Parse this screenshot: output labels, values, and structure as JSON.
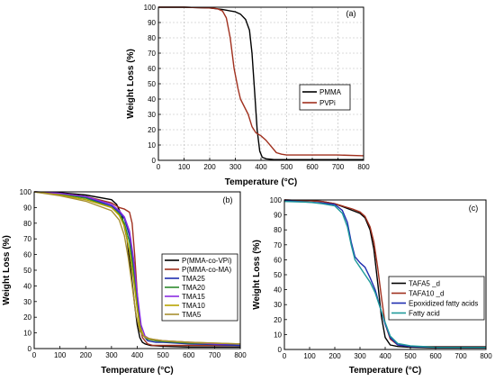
{
  "chart_data": [
    {
      "id": "a",
      "type": "line",
      "panel_label": "(a)",
      "xlabel": "Temperature (°C)",
      "ylabel": "Weight Loss (%)",
      "xlim": [
        0,
        800
      ],
      "ylim": [
        0,
        100
      ],
      "xticks": [
        0,
        100,
        200,
        300,
        400,
        500,
        600,
        700,
        800
      ],
      "yticks": [
        0,
        10,
        20,
        30,
        40,
        50,
        60,
        70,
        80,
        90,
        100
      ],
      "grid": true,
      "legend_position": "center-right",
      "series": [
        {
          "name": "PMMA",
          "color": "#000000",
          "x": [
            0,
            100,
            200,
            250,
            300,
            320,
            340,
            355,
            365,
            375,
            385,
            395,
            405,
            420,
            450,
            500,
            600,
            700,
            800
          ],
          "y": [
            100,
            100,
            99.5,
            98.5,
            97,
            95.5,
            92,
            85,
            70,
            45,
            20,
            6,
            2,
            1,
            0.5,
            0.5,
            0.5,
            0.5,
            0.5
          ]
        },
        {
          "name": "PVPi",
          "color": "#a0301e",
          "x": [
            0,
            100,
            200,
            230,
            250,
            265,
            280,
            295,
            310,
            320,
            335,
            350,
            365,
            380,
            400,
            420,
            440,
            460,
            480,
            500,
            550,
            600,
            700,
            800
          ],
          "y": [
            100,
            100,
            99.5,
            99,
            97.5,
            93,
            80,
            60,
            47,
            40,
            35,
            30,
            22,
            18,
            16,
            13,
            9,
            5,
            4,
            3.5,
            3.5,
            3.5,
            3.5,
            3
          ]
        }
      ]
    },
    {
      "id": "b",
      "type": "line",
      "panel_label": "(b)",
      "xlabel": "Temperature (°C)",
      "ylabel": "Weight Loss (%)",
      "xlim": [
        0,
        800
      ],
      "ylim": [
        0,
        100
      ],
      "xticks": [
        0,
        100,
        200,
        300,
        400,
        500,
        600,
        700,
        800
      ],
      "yticks": [
        0,
        10,
        20,
        30,
        40,
        50,
        60,
        70,
        80,
        90,
        100
      ],
      "grid": false,
      "legend_position": "right",
      "series": [
        {
          "name": "P(MMA-co-VPi)",
          "color": "#000000",
          "x": [
            0,
            100,
            200,
            300,
            320,
            340,
            360,
            375,
            390,
            400,
            410,
            420,
            430,
            450,
            500,
            600,
            700,
            800
          ],
          "y": [
            100,
            99.5,
            98,
            95,
            92,
            85,
            70,
            50,
            28,
            15,
            7,
            4,
            3,
            2,
            1.5,
            1,
            1,
            1
          ]
        },
        {
          "name": "P(MMA-co-MA)",
          "color": "#a0301e",
          "x": [
            0,
            100,
            200,
            300,
            330,
            350,
            370,
            380,
            390,
            400,
            410,
            420,
            440,
            460,
            500,
            600,
            700,
            800
          ],
          "y": [
            100,
            99,
            97,
            93,
            90,
            89,
            87,
            80,
            60,
            35,
            15,
            7,
            3,
            2,
            2,
            2,
            2,
            2
          ]
        },
        {
          "name": "TMA25",
          "color": "#1f2eb0",
          "x": [
            0,
            100,
            200,
            300,
            330,
            350,
            370,
            385,
            400,
            410,
            420,
            440,
            470,
            500,
            600,
            700,
            800
          ],
          "y": [
            100,
            99,
            96.5,
            91,
            87,
            83,
            72,
            55,
            30,
            17,
            9,
            5,
            4,
            4,
            3,
            2.5,
            2
          ]
        },
        {
          "name": "TMA20",
          "color": "#2e8b2e",
          "x": [
            0,
            100,
            200,
            300,
            330,
            350,
            370,
            385,
            400,
            410,
            420,
            440,
            470,
            500,
            600,
            700,
            800
          ],
          "y": [
            100,
            98.5,
            96,
            90,
            86,
            80,
            68,
            50,
            27,
            15,
            9,
            6,
            5,
            4.5,
            3.5,
            3,
            3
          ]
        },
        {
          "name": "TMA15",
          "color": "#8a2be2",
          "x": [
            0,
            100,
            200,
            300,
            330,
            350,
            370,
            385,
            400,
            415,
            430,
            450,
            500,
            600,
            700,
            800
          ],
          "y": [
            100,
            99,
            97,
            92,
            88,
            84,
            75,
            58,
            35,
            15,
            8,
            6,
            5,
            4,
            3,
            3
          ]
        },
        {
          "name": "TMA10",
          "color": "#b8a400",
          "x": [
            0,
            100,
            200,
            300,
            330,
            350,
            370,
            385,
            400,
            410,
            425,
            450,
            500,
            600,
            700,
            800
          ],
          "y": [
            100,
            98,
            95,
            90,
            85,
            78,
            62,
            45,
            25,
            14,
            8,
            6,
            5,
            4,
            3.5,
            3
          ]
        },
        {
          "name": "TMA5",
          "color": "#a89030",
          "x": [
            0,
            100,
            200,
            300,
            330,
            350,
            365,
            380,
            395,
            410,
            430,
            460,
            500,
            600,
            700,
            800
          ],
          "y": [
            100,
            97.5,
            94,
            88,
            82,
            72,
            58,
            40,
            22,
            11,
            7,
            6,
            5,
            4,
            3.5,
            3
          ]
        }
      ]
    },
    {
      "id": "c",
      "type": "line",
      "panel_label": "(c)",
      "xlabel": "Temperature (°C)",
      "ylabel": "Weight Loss (%)",
      "xlim": [
        0,
        800
      ],
      "ylim": [
        0,
        100
      ],
      "xticks": [
        0,
        100,
        200,
        300,
        400,
        500,
        600,
        700,
        800
      ],
      "yticks": [
        0,
        10,
        20,
        30,
        40,
        50,
        60,
        70,
        80,
        90,
        100
      ],
      "grid": false,
      "legend_position": "right",
      "series": [
        {
          "name": "TAFA5 _d",
          "color": "#000000",
          "x": [
            0,
            100,
            150,
            200,
            240,
            270,
            300,
            320,
            340,
            355,
            370,
            385,
            400,
            420,
            450,
            500,
            600,
            700,
            800
          ],
          "y": [
            100,
            99.5,
            99,
            97.5,
            95,
            93,
            91,
            88,
            80,
            67,
            45,
            22,
            8,
            3,
            2,
            1.5,
            1,
            1,
            1
          ]
        },
        {
          "name": "TAFA10 _d",
          "color": "#a0301e",
          "x": [
            0,
            100,
            150,
            200,
            240,
            270,
            300,
            320,
            340,
            355,
            370,
            385,
            400,
            420,
            450,
            500,
            600,
            700,
            800
          ],
          "y": [
            100,
            99.5,
            99,
            97.5,
            95.5,
            94,
            92,
            89,
            82,
            72,
            55,
            35,
            17,
            7,
            3,
            2,
            2,
            2,
            2
          ]
        },
        {
          "name": "Epoxidized fatty acids",
          "color": "#1f2eb0",
          "x": [
            0,
            100,
            150,
            200,
            230,
            250,
            265,
            280,
            300,
            320,
            340,
            360,
            380,
            400,
            420,
            450,
            500,
            600,
            700,
            800
          ],
          "y": [
            99.5,
            98.5,
            98,
            97,
            93,
            85,
            72,
            62,
            58,
            55,
            48,
            40,
            28,
            17,
            8,
            3,
            2,
            1.5,
            1.5,
            1.5
          ]
        },
        {
          "name": "Fatty acid",
          "color": "#1f9a9a",
          "x": [
            0,
            100,
            150,
            200,
            230,
            250,
            265,
            280,
            300,
            320,
            340,
            360,
            380,
            400,
            420,
            450,
            500,
            600,
            700,
            800
          ],
          "y": [
            99,
            98.5,
            97.5,
            96,
            91,
            82,
            70,
            60,
            55,
            50,
            45,
            38,
            28,
            18,
            9,
            4,
            2.5,
            1.5,
            1.5,
            1.5
          ]
        }
      ]
    }
  ]
}
